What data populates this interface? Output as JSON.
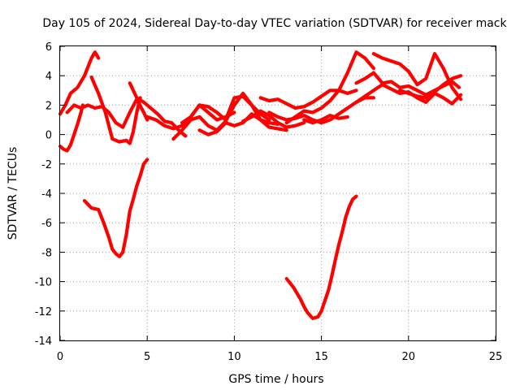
{
  "chart_data": {
    "type": "line",
    "title": "Day 105 of 2024, Sidereal Day-to-day VTEC variation (SDTVAR) for receiver mack",
    "xlabel": "GPS time / hours",
    "ylabel": "SDTVAR / TECUs",
    "xlim": [
      0,
      25
    ],
    "ylim": [
      -14,
      6
    ],
    "xticks": [
      0,
      5,
      10,
      15,
      20,
      25
    ],
    "yticks": [
      -14,
      -12,
      -10,
      -8,
      -6,
      -4,
      -2,
      0,
      2,
      4,
      6
    ],
    "grid": true,
    "color": "#ff0000",
    "series": [
      {
        "name": "trace-1",
        "x": [
          0.0,
          0.3,
          0.6,
          1.0,
          1.4,
          1.8,
          2.0,
          2.2
        ],
        "y": [
          1.4,
          2.0,
          2.8,
          3.2,
          4.0,
          5.2,
          5.6,
          5.2
        ]
      },
      {
        "name": "trace-2",
        "x": [
          0.0,
          0.2,
          0.4,
          0.6,
          0.8,
          1.0,
          1.2,
          1.3
        ],
        "y": [
          -0.8,
          -1.0,
          -1.1,
          -0.7,
          0.0,
          0.7,
          1.5,
          2.0
        ]
      },
      {
        "name": "trace-3",
        "x": [
          0.4,
          0.8,
          1.2,
          1.6,
          2.0,
          2.4,
          2.8,
          3.2,
          3.6,
          4.0,
          4.4,
          4.8,
          5.0
        ],
        "y": [
          1.5,
          2.0,
          1.8,
          2.0,
          1.8,
          1.9,
          1.5,
          0.8,
          0.5,
          1.5,
          2.4,
          1.5,
          1.0
        ]
      },
      {
        "name": "trace-4",
        "x": [
          1.8,
          2.2,
          2.6,
          3.0,
          3.4,
          3.8,
          4.0,
          4.2,
          4.4,
          4.6
        ],
        "y": [
          3.9,
          2.8,
          1.5,
          -0.3,
          -0.5,
          -0.4,
          -0.6,
          0.2,
          1.5,
          2.5
        ]
      },
      {
        "name": "trace-5",
        "x": [
          4.0,
          4.4,
          4.8,
          5.2,
          5.6,
          6.0,
          6.4,
          6.8,
          7.2
        ],
        "y": [
          3.5,
          2.5,
          2.2,
          1.8,
          1.4,
          0.9,
          0.8,
          0.3,
          -0.1
        ]
      },
      {
        "name": "trace-6",
        "x": [
          5.0,
          5.5,
          6.0,
          6.5,
          7.0,
          7.5,
          8.0,
          8.5,
          9.0,
          9.5,
          10.0
        ],
        "y": [
          1.2,
          1.0,
          0.6,
          0.4,
          0.6,
          1.2,
          2.0,
          1.5,
          1.0,
          1.2,
          1.5
        ]
      },
      {
        "name": "trace-7",
        "x": [
          6.5,
          7.0,
          7.5,
          8.0,
          8.5,
          9.0,
          9.5,
          10.0,
          10.5,
          11.0,
          11.5,
          12.0,
          12.5
        ],
        "y": [
          -0.3,
          0.3,
          1.0,
          1.2,
          0.6,
          0.3,
          0.9,
          2.0,
          2.8,
          2.0,
          1.0,
          0.8,
          0.7
        ]
      },
      {
        "name": "trace-8",
        "x": [
          7.0,
          7.5,
          8.0,
          8.5,
          9.0,
          9.5,
          10.0,
          10.5,
          11.0,
          11.5,
          12.0
        ],
        "y": [
          0.8,
          1.2,
          2.0,
          1.9,
          1.5,
          1.0,
          2.5,
          2.6,
          2.0,
          1.4,
          1.0
        ]
      },
      {
        "name": "trace-9",
        "x": [
          8.0,
          8.5,
          9.0,
          9.5,
          10.0,
          10.5,
          11.0,
          11.5,
          12.0,
          12.5,
          13.0
        ],
        "y": [
          0.3,
          0.0,
          0.2,
          0.8,
          0.6,
          0.8,
          1.4,
          1.0,
          0.5,
          0.4,
          0.3
        ]
      },
      {
        "name": "trace-10",
        "x": [
          10.5,
          11.0,
          11.5,
          12.0,
          12.5,
          13.0,
          13.5,
          14.0
        ],
        "y": [
          0.9,
          1.2,
          1.6,
          1.3,
          0.8,
          0.5,
          0.6,
          0.8
        ]
      },
      {
        "name": "trace-11",
        "x": [
          11.5,
          12.0,
          12.5,
          13.0,
          13.5,
          14.0,
          14.5,
          15.0,
          15.5,
          16.0,
          16.5,
          17.0
        ],
        "y": [
          2.5,
          2.3,
          2.4,
          2.1,
          1.8,
          1.9,
          2.2,
          2.6,
          3.0,
          3.0,
          2.8,
          3.0
        ]
      },
      {
        "name": "trace-12",
        "x": [
          12.0,
          12.5,
          13.0,
          13.5,
          14.0,
          14.5,
          15.0,
          15.5,
          16.0,
          16.5,
          17.0,
          17.5,
          18.0
        ],
        "y": [
          1.5,
          1.2,
          1.0,
          1.1,
          1.3,
          1.0,
          0.8,
          1.0,
          1.4,
          1.8,
          2.2,
          2.5,
          2.5
        ]
      },
      {
        "name": "trace-13",
        "x": [
          13.0,
          13.5,
          14.0,
          14.5,
          15.0,
          15.5,
          16.0,
          16.5,
          17.0,
          17.5,
          18.0
        ],
        "y": [
          0.8,
          1.2,
          1.6,
          1.5,
          1.8,
          2.3,
          3.0,
          4.2,
          5.6,
          5.2,
          4.5
        ]
      },
      {
        "name": "trace-14",
        "x": [
          14.0,
          14.5,
          15.0,
          15.5,
          16.0,
          16.5
        ],
        "y": [
          1.0,
          0.8,
          1.0,
          1.3,
          1.1,
          1.2
        ]
      },
      {
        "name": "trace-15",
        "x": [
          17.0,
          17.5,
          18.0,
          18.5,
          19.0,
          19.5,
          20.0,
          20.5,
          21.0,
          21.5,
          22.0,
          22.5,
          22.9
        ],
        "y": [
          3.5,
          3.8,
          4.2,
          3.5,
          3.6,
          3.2,
          3.3,
          3.0,
          2.7,
          3.0,
          3.3,
          3.6,
          3.2
        ]
      },
      {
        "name": "trace-16",
        "x": [
          17.0,
          17.5,
          18.0,
          18.5,
          19.0,
          19.5,
          20.0,
          20.5,
          21.0
        ],
        "y": [
          2.2,
          2.6,
          3.0,
          3.4,
          3.1,
          2.8,
          2.9,
          2.5,
          2.2
        ]
      },
      {
        "name": "trace-17",
        "x": [
          18.0,
          18.5,
          19.0,
          19.5,
          20.0,
          20.5,
          21.0,
          21.5,
          22.0,
          22.5,
          23.0
        ],
        "y": [
          5.5,
          5.2,
          5.0,
          4.8,
          4.3,
          3.4,
          3.8,
          5.5,
          4.5,
          3.2,
          2.4
        ]
      },
      {
        "name": "trace-18",
        "x": [
          19.5,
          20.0,
          20.5,
          21.0,
          21.5,
          22.0,
          22.5,
          23.0
        ],
        "y": [
          3.0,
          2.8,
          2.6,
          2.5,
          2.9,
          3.4,
          3.8,
          4.0
        ]
      },
      {
        "name": "trace-19",
        "x": [
          20.5,
          21.0,
          21.5,
          22.0,
          22.5,
          23.0
        ],
        "y": [
          2.5,
          2.2,
          2.8,
          2.5,
          2.1,
          2.7
        ]
      },
      {
        "name": "trace-20",
        "x": [
          1.4,
          1.8,
          2.2,
          2.5,
          2.8,
          3.0,
          3.2,
          3.4,
          3.6,
          3.8,
          4.0,
          4.2,
          4.4,
          4.6,
          4.8,
          5.0
        ],
        "y": [
          -4.5,
          -5.0,
          -5.1,
          -6.0,
          -7.0,
          -7.8,
          -8.1,
          -8.3,
          -8.0,
          -6.8,
          -5.2,
          -4.4,
          -3.5,
          -2.8,
          -2.0,
          -1.7
        ]
      },
      {
        "name": "trace-21",
        "x": [
          13.0,
          13.4,
          13.8,
          14.0,
          14.2,
          14.5,
          14.8,
          15.0,
          15.2,
          15.4,
          15.6,
          15.8,
          16.0,
          16.2,
          16.4,
          16.6,
          16.8,
          17.0
        ],
        "y": [
          -9.8,
          -10.4,
          -11.2,
          -11.7,
          -12.1,
          -12.5,
          -12.4,
          -12.0,
          -11.3,
          -10.6,
          -9.6,
          -8.5,
          -7.5,
          -6.6,
          -5.6,
          -4.9,
          -4.4,
          -4.2
        ]
      }
    ]
  }
}
